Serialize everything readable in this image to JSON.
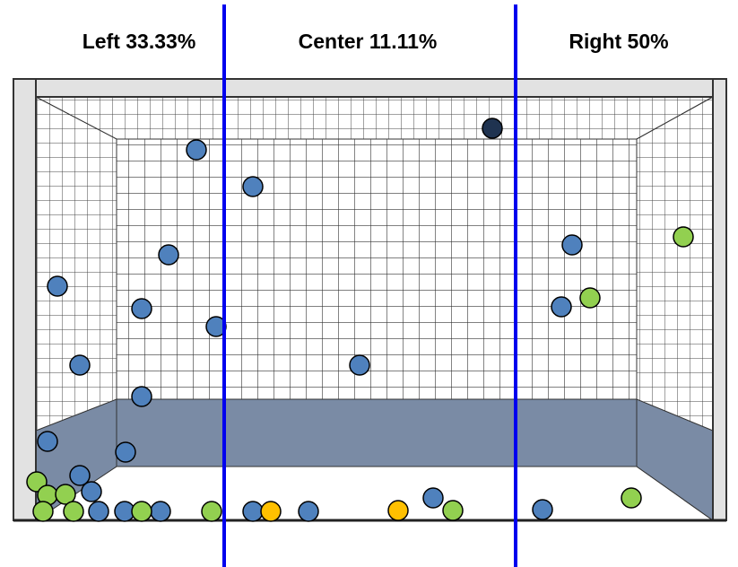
{
  "labels": {
    "left": "Left 33.33%",
    "center": "Center 11.11%",
    "right": "Right 50%"
  }
}
